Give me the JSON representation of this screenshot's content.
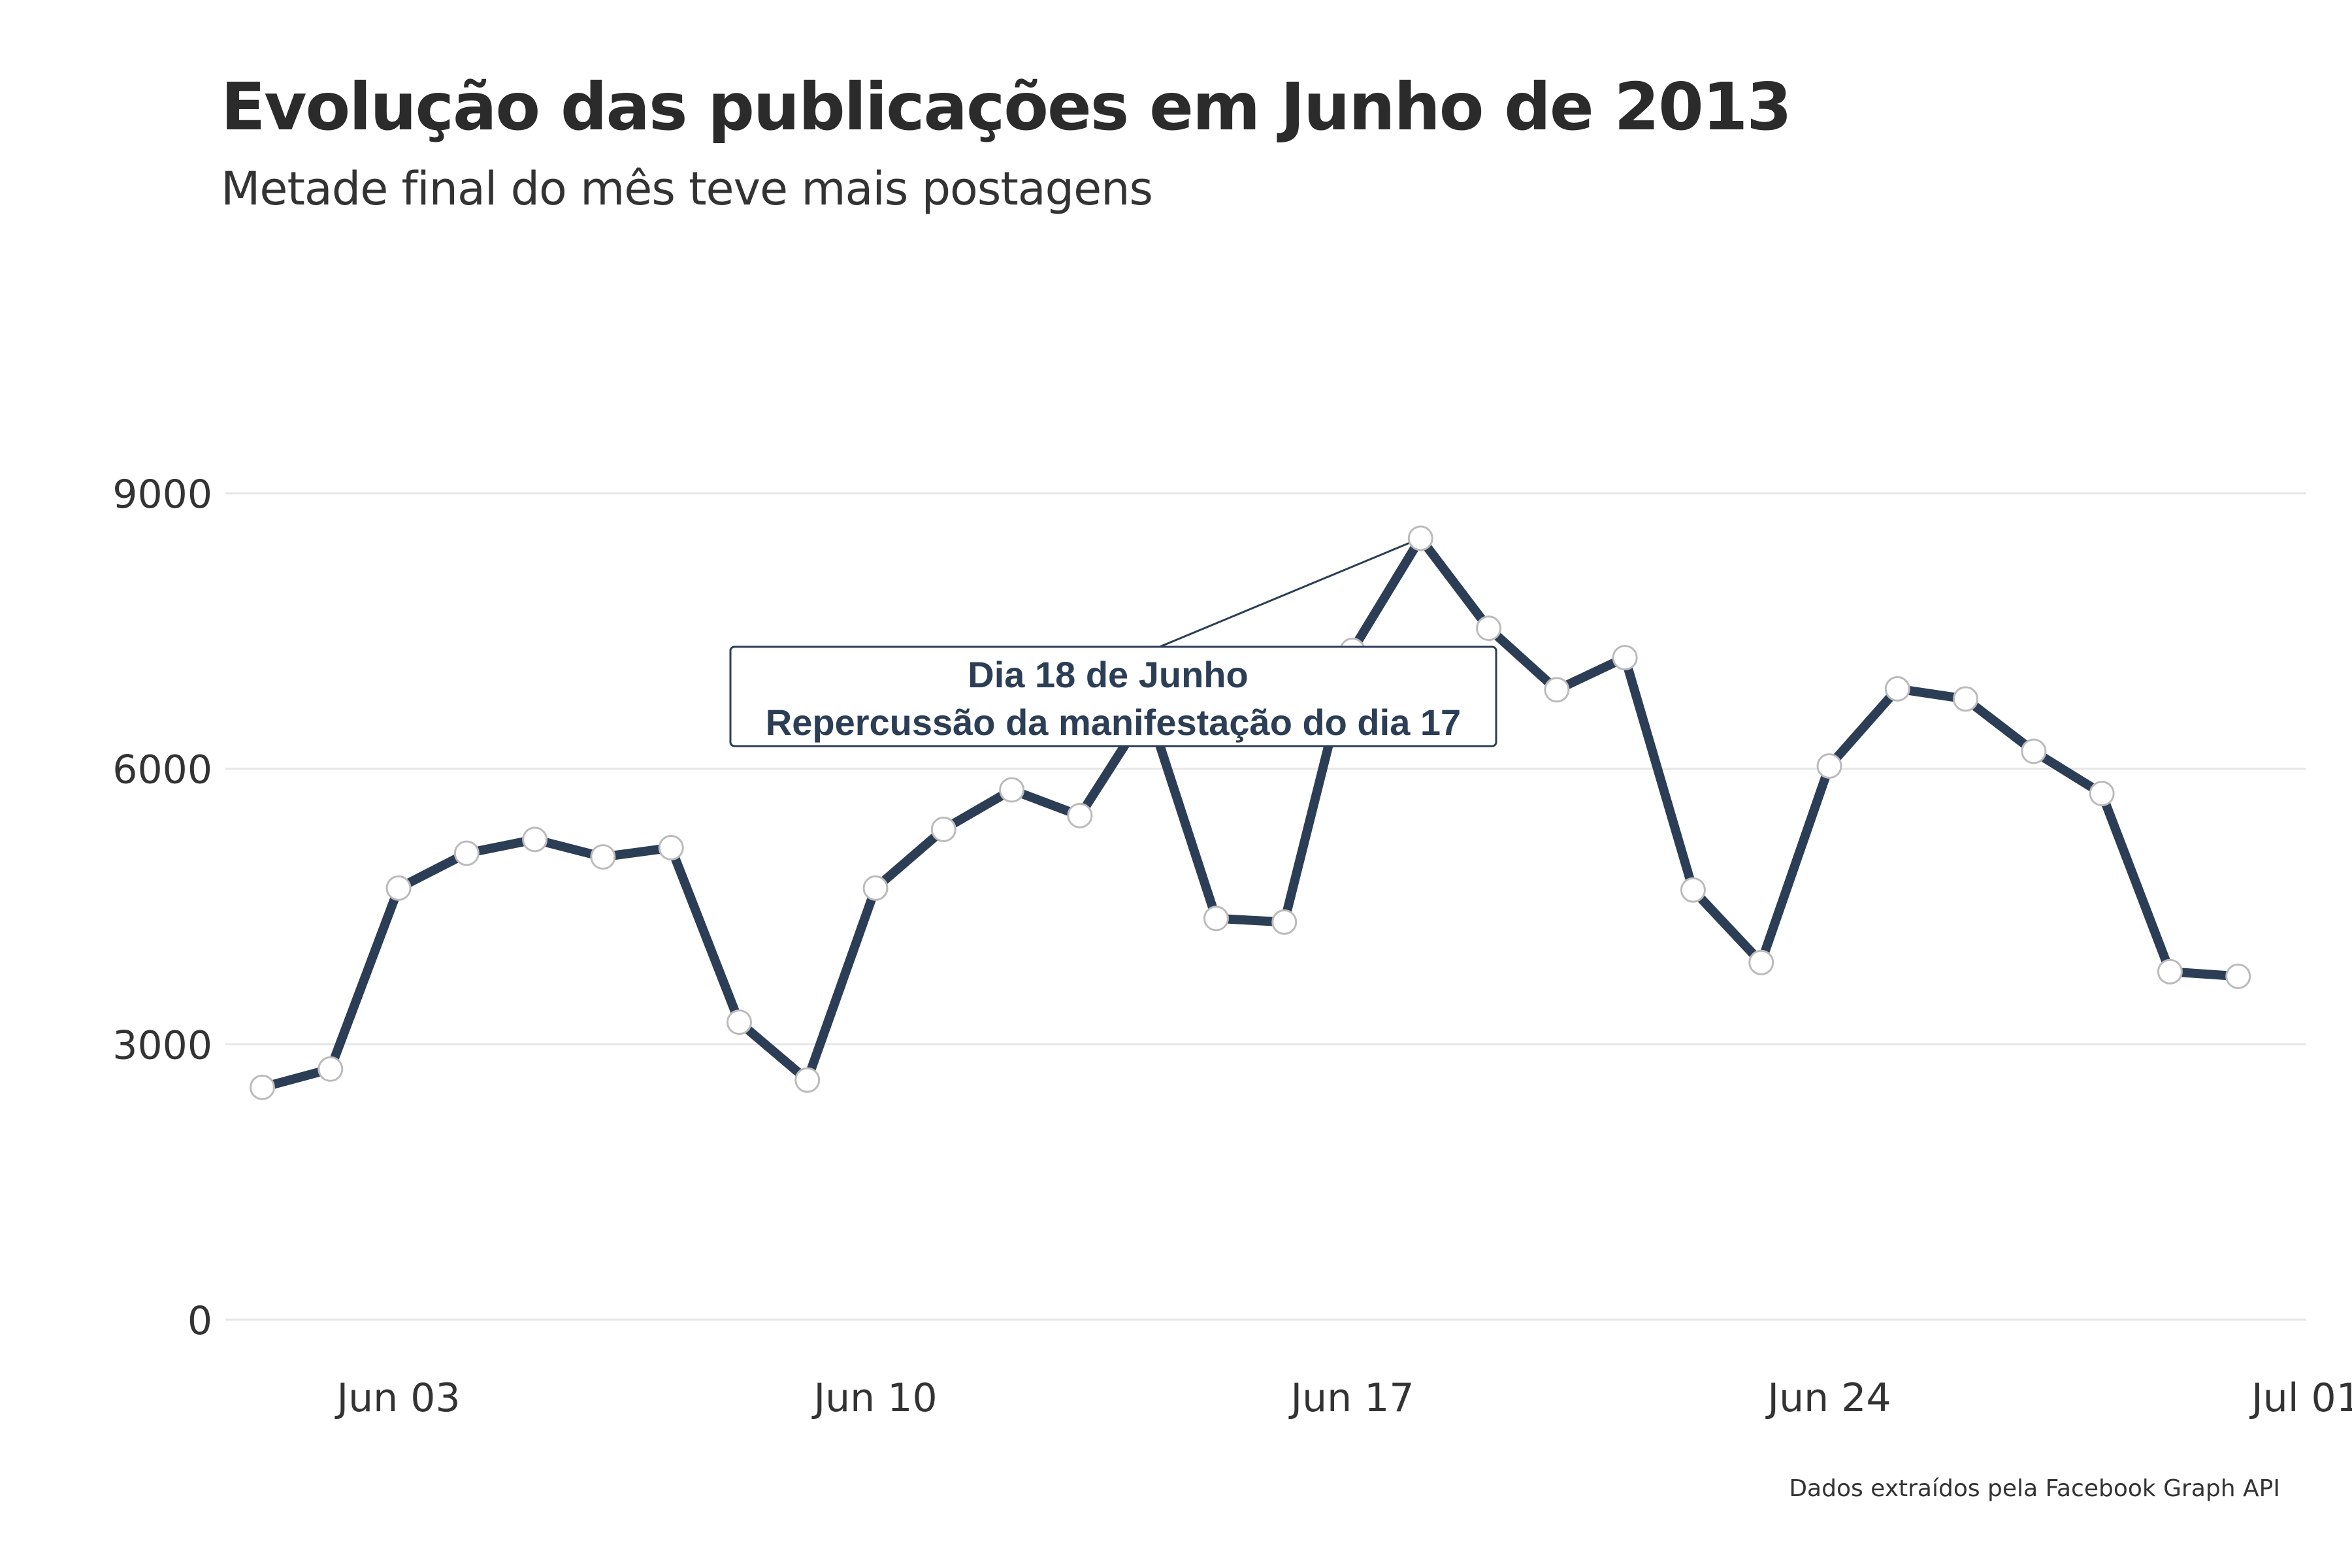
{
  "chart_data": {
    "type": "line",
    "title": "Evolução das publicações em Junho de 2013",
    "subtitle": "Metade final do mês teve mais postagens",
    "caption": "Dados extraídos pela Facebook Graph API",
    "xlabel": "",
    "ylabel": "",
    "x": [
      "2013-06-01",
      "2013-06-02",
      "2013-06-03",
      "2013-06-04",
      "2013-06-05",
      "2013-06-06",
      "2013-06-07",
      "2013-06-08",
      "2013-06-09",
      "2013-06-10",
      "2013-06-11",
      "2013-06-12",
      "2013-06-13",
      "2013-06-14",
      "2013-06-15",
      "2013-06-16",
      "2013-06-17",
      "2013-06-18",
      "2013-06-19",
      "2013-06-20",
      "2013-06-21",
      "2013-06-22",
      "2013-06-23",
      "2013-06-24",
      "2013-06-25",
      "2013-06-26",
      "2013-06-27",
      "2013-06-28",
      "2013-06-29",
      "2013-06-30"
    ],
    "series": [
      {
        "values": [
          2530,
          2730,
          4700,
          5080,
          5230,
          5040,
          5140,
          3240,
          2610,
          4700,
          5340,
          5770,
          5490,
          6650,
          4370,
          4330,
          7290,
          8510,
          7530,
          6860,
          7210,
          4680,
          3890,
          6030,
          6870,
          6760,
          6190,
          5730,
          3790,
          3740
        ]
      }
    ],
    "ylim": [
      0,
      9000
    ],
    "xlim": [
      "2013-05-31T11:00",
      "2013-07-01"
    ],
    "yticks": [
      0,
      3000,
      6000,
      9000
    ],
    "ytick_labels": [
      "0",
      "3000",
      "6000",
      "9000"
    ],
    "xticks": [
      "2013-06-03",
      "2013-06-10",
      "2013-06-17",
      "2013-06-24",
      "2013-07-01"
    ],
    "xtick_labels": [
      "Jun 03",
      "Jun 10",
      "Jun 17",
      "Jun 24",
      "Jul 01"
    ],
    "grid": true,
    "line_color": "#2c3e55",
    "point_fill": "#ffffff",
    "point_stroke": "#bbbbbb",
    "grid_color": "#e6e6e6",
    "annotation": {
      "point_x": "2013-06-18",
      "point_y": 8510,
      "lines": [
        "Dia 18 de Junho",
        "Repercussão da manifestação do dia 17"
      ]
    }
  }
}
